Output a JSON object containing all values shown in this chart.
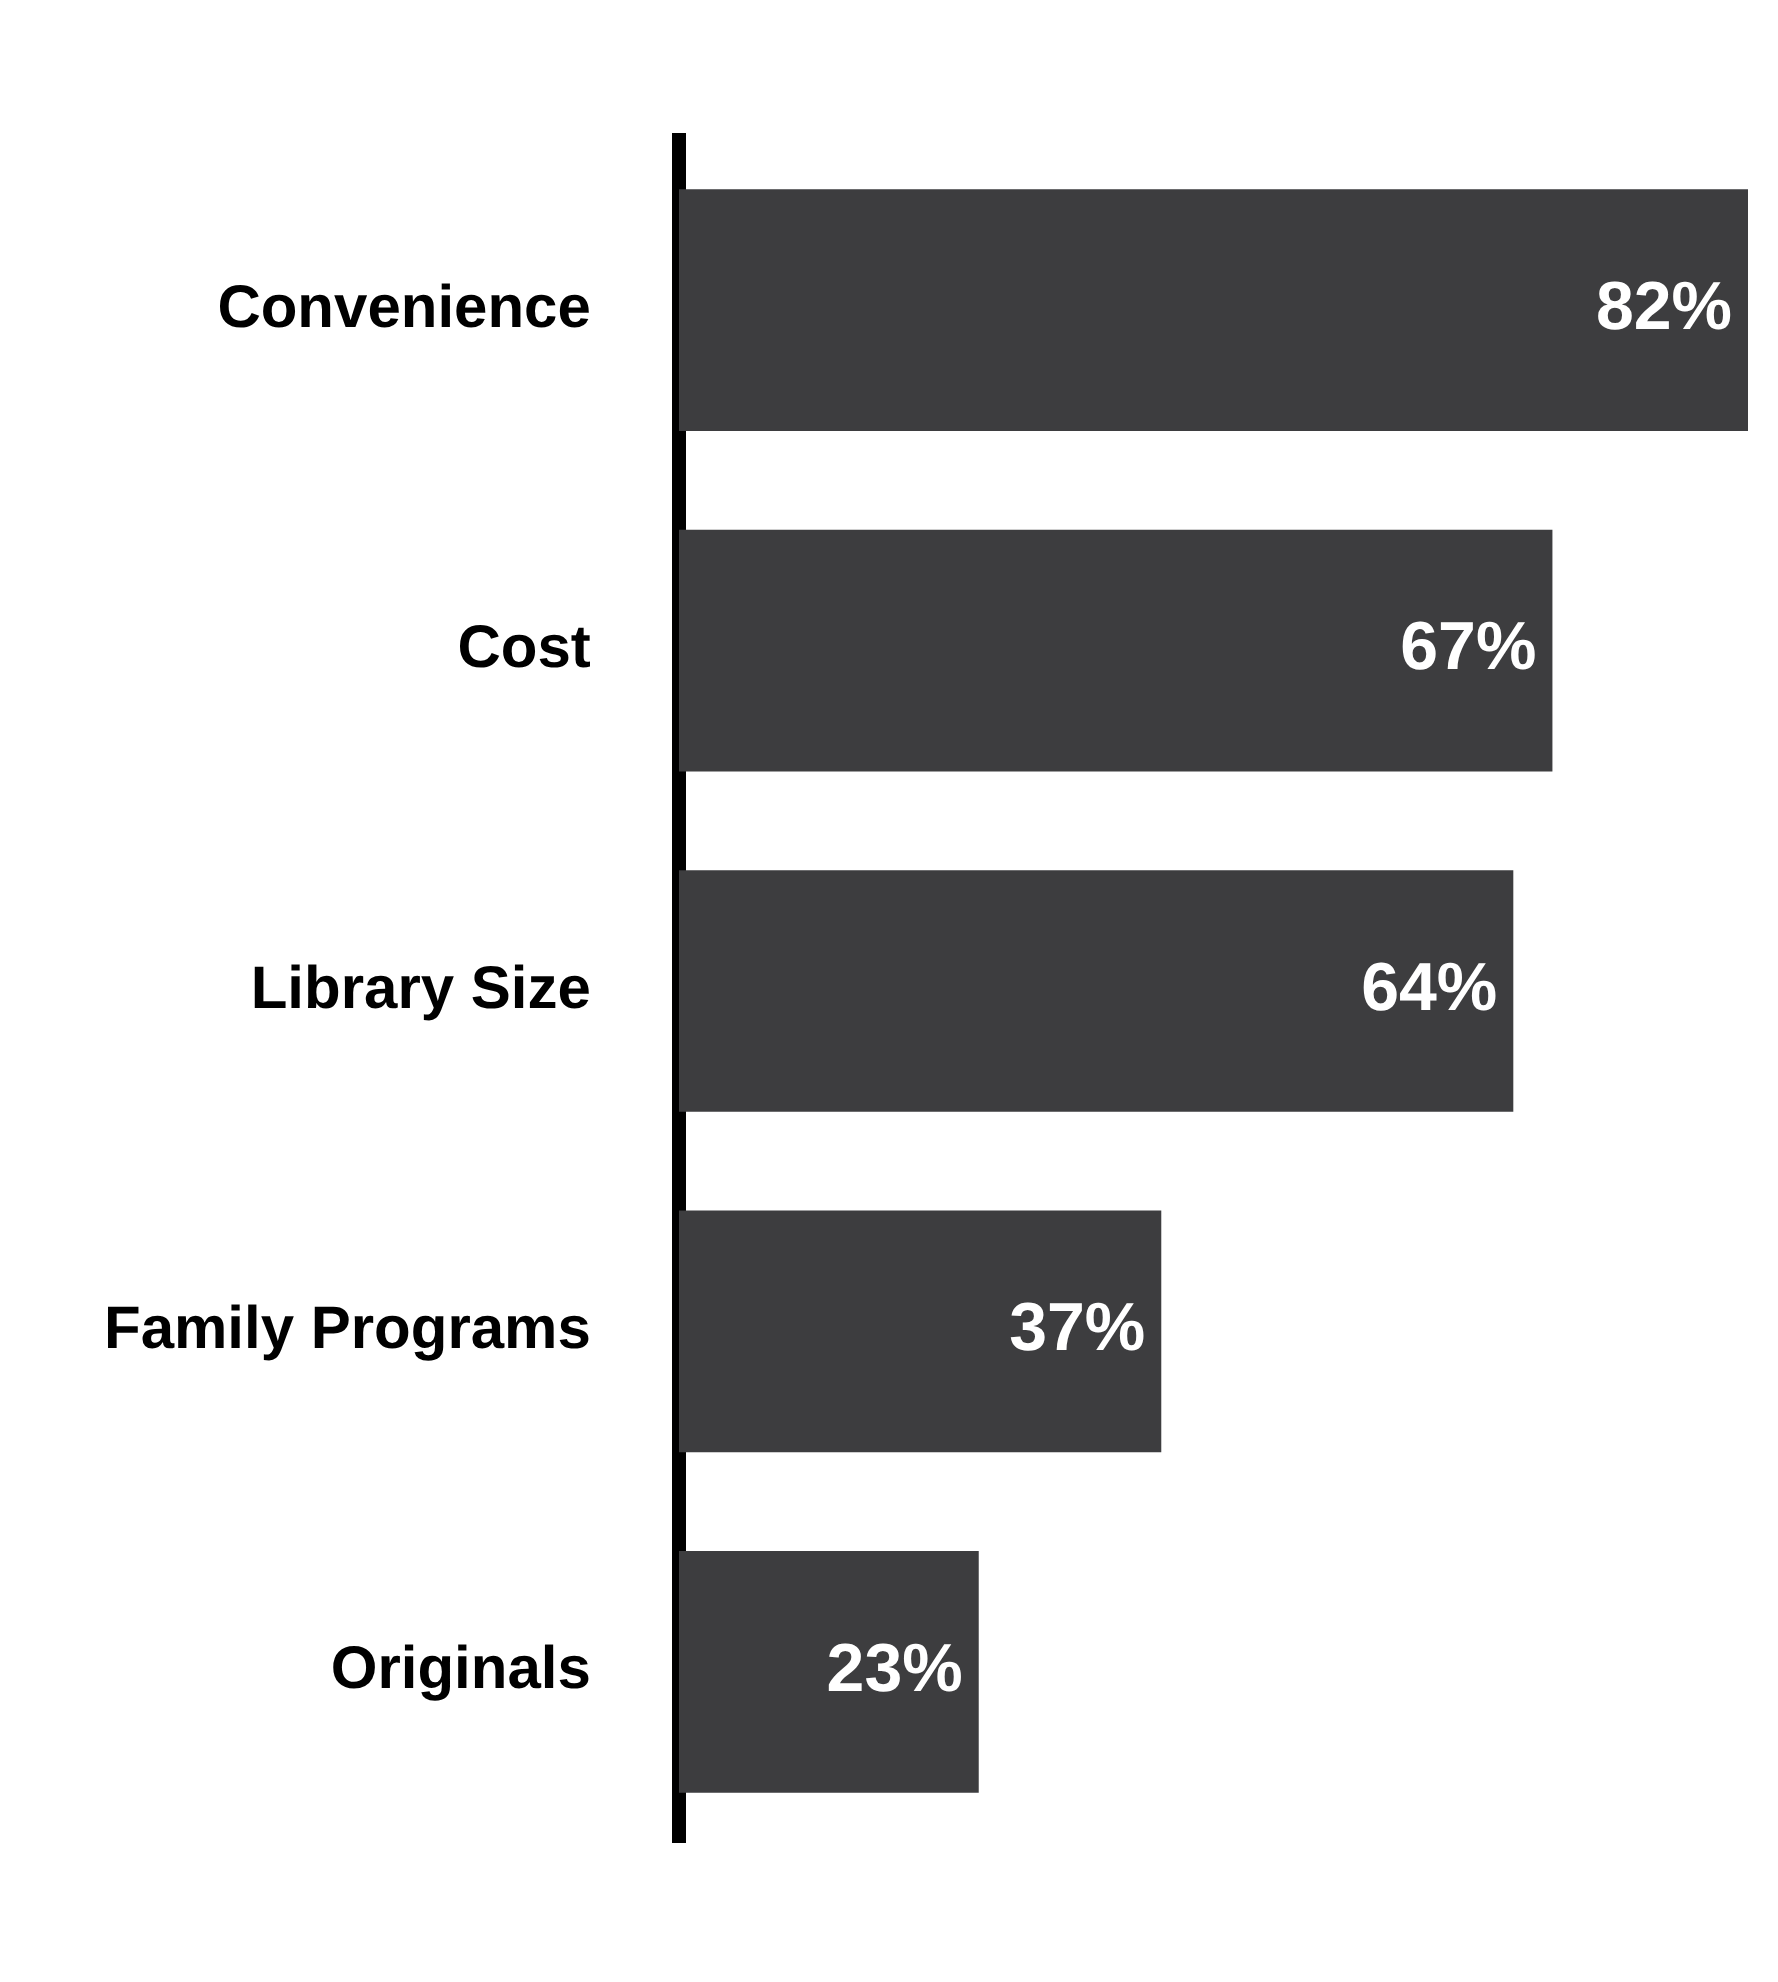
{
  "chart_data": {
    "type": "bar",
    "orientation": "horizontal",
    "categories": [
      "Convenience",
      "Cost",
      "Library Size",
      "Family Programs",
      "Originals"
    ],
    "values": [
      82,
      67,
      64,
      37,
      23
    ],
    "value_labels": [
      "82%",
      "67%",
      "64%",
      "37%",
      "23%"
    ],
    "color": "#3d3d3f",
    "legend": false,
    "tick_labels": "y"
  }
}
